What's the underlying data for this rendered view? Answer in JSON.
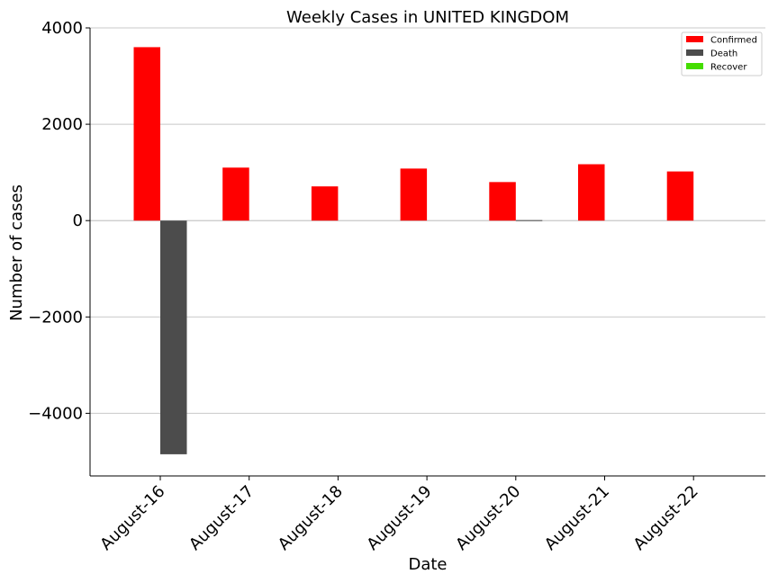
{
  "chart_data": {
    "type": "bar",
    "title": "Weekly Cases in UNITED KINGDOM",
    "xlabel": "Date",
    "ylabel": "Number of cases",
    "categories": [
      "August-16",
      "August-17",
      "August-18",
      "August-19",
      "August-20",
      "August-21",
      "August-22"
    ],
    "series": [
      {
        "name": "Confirmed",
        "color": "#ff0000",
        "values": [
          3600,
          1100,
          710,
          1080,
          800,
          1170,
          1020
        ]
      },
      {
        "name": "Death",
        "color": "#4c4c4c",
        "values": [
          -4850,
          0,
          0,
          0,
          10,
          0,
          0
        ]
      },
      {
        "name": "Recover",
        "color": "#44dd00",
        "values": [
          0,
          0,
          0,
          0,
          0,
          0,
          0
        ]
      }
    ],
    "ylim": [
      -5300,
      4000
    ],
    "yticks": [
      4000,
      2000,
      0,
      -2000,
      -4000
    ],
    "ytick_labels": [
      "4000",
      "2000",
      "0",
      "−2000",
      "−4000"
    ],
    "grid": "horizontal",
    "legend_position": "top-right"
  }
}
